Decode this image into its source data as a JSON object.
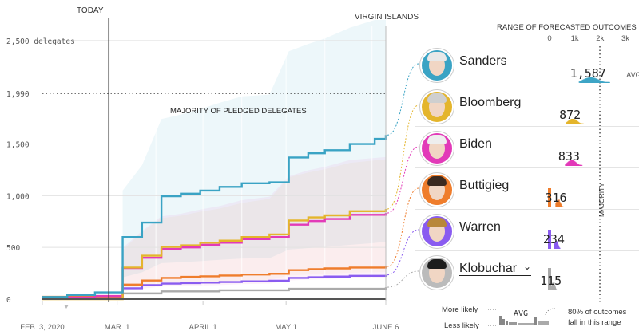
{
  "timeline": {
    "today_label": "TODAY",
    "virgin_islands_label": "VIRGIN ISLANDS",
    "majority_label": "MAJORITY OF PLEDGED DELEGATES",
    "x_ticks": [
      "FEB. 3, 2020",
      "MAR. 1",
      "APRIL 1",
      "MAY 1",
      "JUNE 6"
    ],
    "y_ticks": [
      "2,500 delegates",
      "1,990",
      "1,500",
      "1,000",
      "500",
      "0"
    ]
  },
  "forecast_panel": {
    "title": "RANGE OF FORECASTED OUTCOMES",
    "axis_ticks": [
      "0",
      "1k",
      "2k",
      "3k"
    ],
    "majority_label": "MAJORITY",
    "avg_suffix": "AVG.",
    "candidates": [
      {
        "name": "Sanders",
        "value": "1,587",
        "color": "#3aa3c4",
        "ring": "#3aa3c4"
      },
      {
        "name": "Bloomberg",
        "value": "872",
        "color": "#e4b52c",
        "ring": "#e4b52c"
      },
      {
        "name": "Biden",
        "value": "833",
        "color": "#e23ab8",
        "ring": "#e23ab8"
      },
      {
        "name": "Buttigieg",
        "value": "316",
        "color": "#ef7d2c",
        "ring": "#ef7d2c"
      },
      {
        "name": "Warren",
        "value": "234",
        "color": "#8a5cf0",
        "ring": "#8a5cf0"
      },
      {
        "name": "Klobuchar",
        "value": "115",
        "color": "#aaaaaa",
        "ring": "#bbbbbb"
      }
    ]
  },
  "legend": {
    "more_likely": "More likely",
    "less_likely": "Less likely",
    "avg": "AVG",
    "note_line1": "80% of outcomes",
    "note_line2": "fall in this range"
  },
  "chart_data": {
    "type": "line",
    "x_range": [
      "2020-02-03",
      "2020-06-06"
    ],
    "today": "2020-02-27",
    "ylim": [
      0,
      2700
    ],
    "majority": 1990,
    "series": [
      {
        "name": "Sanders",
        "color": "#3aa3c4",
        "points": [
          [
            "2020-02-03",
            21
          ],
          [
            "2020-02-12",
            40
          ],
          [
            "2020-02-22",
            65
          ],
          [
            "2020-03-03",
            600
          ],
          [
            "2020-03-10",
            740
          ],
          [
            "2020-03-17",
            995
          ],
          [
            "2020-03-24",
            1020
          ],
          [
            "2020-03-31",
            1050
          ],
          [
            "2020-04-07",
            1085
          ],
          [
            "2020-04-15",
            1120
          ],
          [
            "2020-04-25",
            1130
          ],
          [
            "2020-05-02",
            1370
          ],
          [
            "2020-05-09",
            1410
          ],
          [
            "2020-05-15",
            1440
          ],
          [
            "2020-05-24",
            1500
          ],
          [
            "2020-06-02",
            1550
          ],
          [
            "2020-06-06",
            1587
          ]
        ]
      },
      {
        "name": "Bloomberg",
        "color": "#e4b52c",
        "points": [
          [
            "2020-02-03",
            0
          ],
          [
            "2020-03-03",
            305
          ],
          [
            "2020-03-10",
            420
          ],
          [
            "2020-03-17",
            505
          ],
          [
            "2020-03-24",
            520
          ],
          [
            "2020-03-31",
            545
          ],
          [
            "2020-04-07",
            565
          ],
          [
            "2020-04-15",
            600
          ],
          [
            "2020-04-25",
            625
          ],
          [
            "2020-05-02",
            760
          ],
          [
            "2020-05-09",
            790
          ],
          [
            "2020-05-15",
            810
          ],
          [
            "2020-05-24",
            850
          ],
          [
            "2020-06-06",
            872
          ]
        ]
      },
      {
        "name": "Biden",
        "color": "#e23ab8",
        "points": [
          [
            "2020-02-03",
            16
          ],
          [
            "2020-02-22",
            30
          ],
          [
            "2020-03-03",
            300
          ],
          [
            "2020-03-10",
            400
          ],
          [
            "2020-03-17",
            485
          ],
          [
            "2020-03-24",
            500
          ],
          [
            "2020-03-31",
            525
          ],
          [
            "2020-04-07",
            545
          ],
          [
            "2020-04-15",
            580
          ],
          [
            "2020-04-25",
            600
          ],
          [
            "2020-05-02",
            720
          ],
          [
            "2020-05-09",
            755
          ],
          [
            "2020-05-15",
            775
          ],
          [
            "2020-05-24",
            815
          ],
          [
            "2020-06-06",
            833
          ]
        ]
      },
      {
        "name": "Buttigieg",
        "color": "#ef7d2c",
        "points": [
          [
            "2020-02-03",
            23
          ],
          [
            "2020-02-22",
            26
          ],
          [
            "2020-03-03",
            140
          ],
          [
            "2020-03-10",
            180
          ],
          [
            "2020-03-17",
            205
          ],
          [
            "2020-03-24",
            215
          ],
          [
            "2020-03-31",
            220
          ],
          [
            "2020-04-07",
            228
          ],
          [
            "2020-04-15",
            238
          ],
          [
            "2020-04-25",
            245
          ],
          [
            "2020-05-02",
            280
          ],
          [
            "2020-05-09",
            290
          ],
          [
            "2020-05-15",
            297
          ],
          [
            "2020-05-24",
            305
          ],
          [
            "2020-06-06",
            316
          ]
        ]
      },
      {
        "name": "Warren",
        "color": "#8a5cf0",
        "points": [
          [
            "2020-02-03",
            8
          ],
          [
            "2020-02-22",
            10
          ],
          [
            "2020-03-03",
            105
          ],
          [
            "2020-03-10",
            135
          ],
          [
            "2020-03-17",
            150
          ],
          [
            "2020-03-24",
            155
          ],
          [
            "2020-03-31",
            160
          ],
          [
            "2020-04-07",
            165
          ],
          [
            "2020-04-15",
            172
          ],
          [
            "2020-04-25",
            178
          ],
          [
            "2020-05-02",
            205
          ],
          [
            "2020-05-09",
            212
          ],
          [
            "2020-05-15",
            218
          ],
          [
            "2020-05-24",
            225
          ],
          [
            "2020-06-06",
            234
          ]
        ]
      },
      {
        "name": "Klobuchar",
        "color": "#aaaaaa",
        "points": [
          [
            "2020-02-03",
            7
          ],
          [
            "2020-03-03",
            55
          ],
          [
            "2020-03-17",
            75
          ],
          [
            "2020-04-07",
            85
          ],
          [
            "2020-05-02",
            100
          ],
          [
            "2020-06-06",
            115
          ]
        ]
      }
    ],
    "forecast_averages": [
      {
        "name": "Sanders",
        "value": 1587
      },
      {
        "name": "Bloomberg",
        "value": 872
      },
      {
        "name": "Biden",
        "value": 833
      },
      {
        "name": "Buttigieg",
        "value": 316
      },
      {
        "name": "Warren",
        "value": 234
      },
      {
        "name": "Klobuchar",
        "value": 115
      }
    ]
  }
}
